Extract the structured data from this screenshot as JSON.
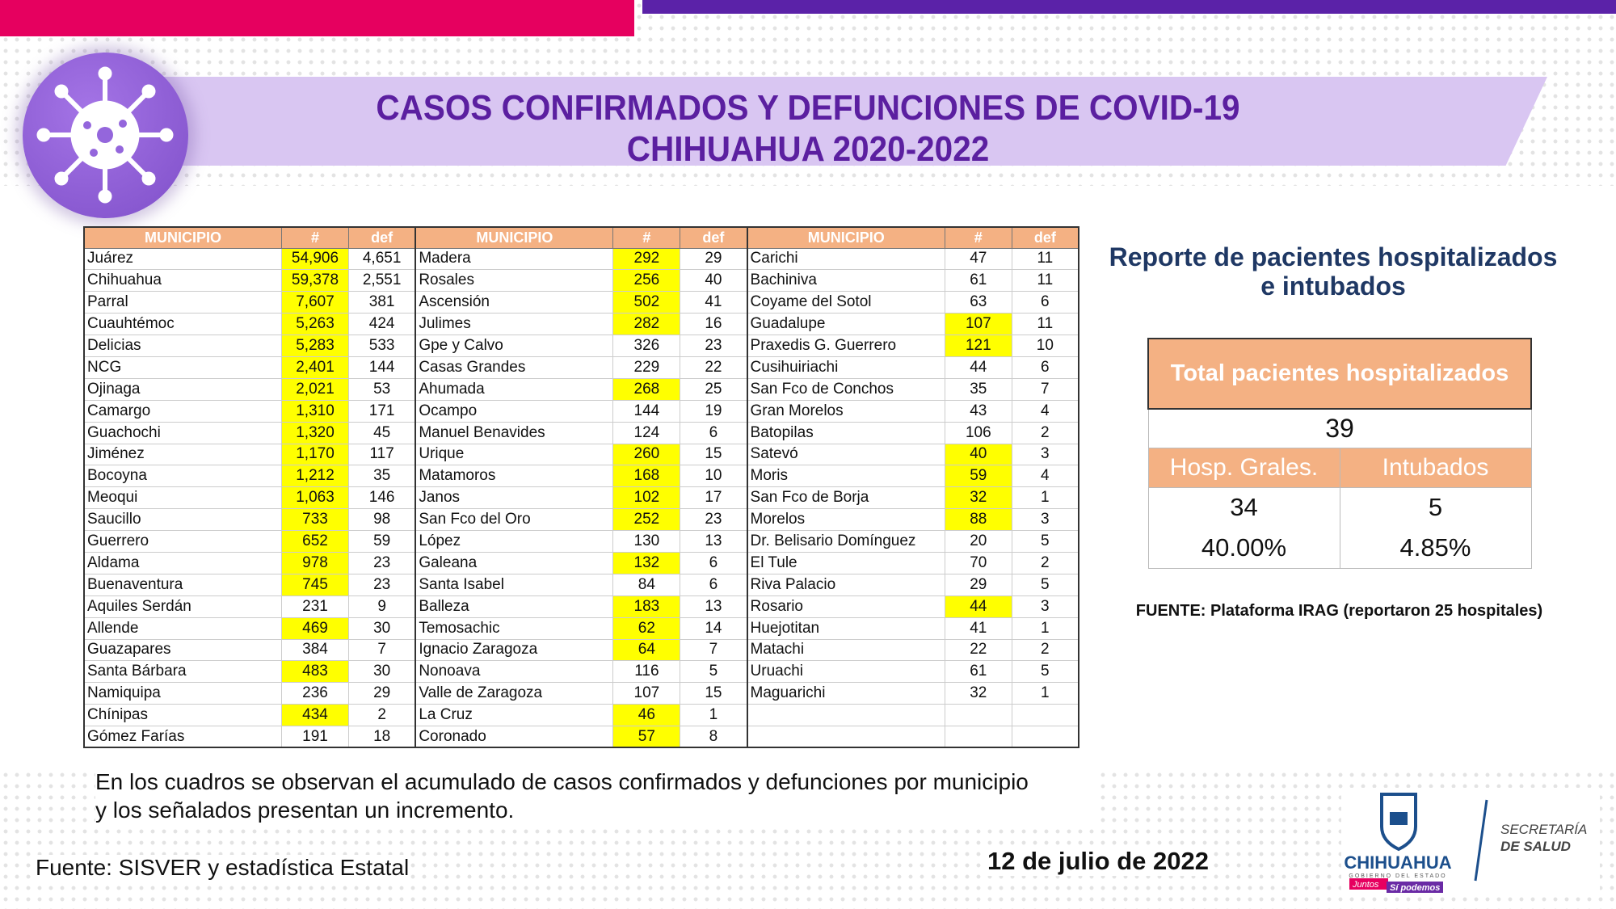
{
  "header": {
    "title_line1": "CASOS CONFIRMADOS Y DEFUNCIONES DE COVID-19",
    "title_line2": "CHIHUAHUA 2020-2022"
  },
  "table": {
    "columns": [
      "MUNICIPIO",
      "#",
      "def"
    ],
    "highlight_color": "#ffff00",
    "groups": [
      [
        [
          "Juárez",
          "54,906",
          "4,651",
          true
        ],
        [
          "Chihuahua",
          "59,378",
          "2,551",
          true
        ],
        [
          "Parral",
          "7,607",
          "381",
          true
        ],
        [
          "Cuauhtémoc",
          "5,263",
          "424",
          true
        ],
        [
          "Delicias",
          "5,283",
          "533",
          true
        ],
        [
          "NCG",
          "2,401",
          "144",
          true
        ],
        [
          "Ojinaga",
          "2,021",
          "53",
          true
        ],
        [
          "Camargo",
          "1,310",
          "171",
          true
        ],
        [
          "Guachochi",
          "1,320",
          "45",
          true
        ],
        [
          "Jiménez",
          "1,170",
          "117",
          true
        ],
        [
          "Bocoyna",
          "1,212",
          "35",
          true
        ],
        [
          "Meoqui",
          "1,063",
          "146",
          true
        ],
        [
          "Saucillo",
          "733",
          "98",
          true
        ],
        [
          "Guerrero",
          "652",
          "59",
          true
        ],
        [
          "Aldama",
          "978",
          "23",
          true
        ],
        [
          "Buenaventura",
          "745",
          "23",
          true
        ],
        [
          "Aquiles Serdán",
          "231",
          "9",
          false
        ],
        [
          "Allende",
          "469",
          "30",
          true
        ],
        [
          "Guazapares",
          "384",
          "7",
          false
        ],
        [
          "Santa Bárbara",
          "483",
          "30",
          true
        ],
        [
          "Namiquipa",
          "236",
          "29",
          false
        ],
        [
          "Chínipas",
          "434",
          "2",
          true
        ],
        [
          "Gómez Farías",
          "191",
          "18",
          false
        ]
      ],
      [
        [
          "Madera",
          "292",
          "29",
          true
        ],
        [
          "Rosales",
          "256",
          "40",
          true
        ],
        [
          "Ascensión",
          "502",
          "41",
          true
        ],
        [
          "Julimes",
          "282",
          "16",
          true
        ],
        [
          "Gpe y Calvo",
          "326",
          "23",
          false
        ],
        [
          "Casas Grandes",
          "229",
          "22",
          false
        ],
        [
          "Ahumada",
          "268",
          "25",
          true
        ],
        [
          "Ocampo",
          "144",
          "19",
          false
        ],
        [
          "Manuel Benavides",
          "124",
          "6",
          false
        ],
        [
          "Urique",
          "260",
          "15",
          true
        ],
        [
          "Matamoros",
          "168",
          "10",
          true
        ],
        [
          "Janos",
          "102",
          "17",
          true
        ],
        [
          "San Fco del Oro",
          "252",
          "23",
          true
        ],
        [
          "López",
          "130",
          "13",
          false
        ],
        [
          "Galeana",
          "132",
          "6",
          true
        ],
        [
          "Santa Isabel",
          "84",
          "6",
          false
        ],
        [
          "Balleza",
          "183",
          "13",
          true
        ],
        [
          "Temosachic",
          "62",
          "14",
          true
        ],
        [
          "Ignacio Zaragoza",
          "64",
          "7",
          true
        ],
        [
          "Nonoava",
          "116",
          "5",
          false
        ],
        [
          "Valle de Zaragoza",
          "107",
          "15",
          false
        ],
        [
          "La Cruz",
          "46",
          "1",
          true
        ],
        [
          "Coronado",
          "57",
          "8",
          true
        ]
      ],
      [
        [
          "Carichi",
          "47",
          "11",
          false
        ],
        [
          "Bachiniva",
          "61",
          "11",
          false
        ],
        [
          "Coyame del Sotol",
          "63",
          "6",
          false
        ],
        [
          "Guadalupe",
          "107",
          "11",
          true
        ],
        [
          "Praxedis G. Guerrero",
          "121",
          "10",
          true
        ],
        [
          "Cusihuiriachi",
          "44",
          "6",
          false
        ],
        [
          "San Fco de Conchos",
          "35",
          "7",
          false
        ],
        [
          "Gran Morelos",
          "43",
          "4",
          false
        ],
        [
          "Batopilas",
          "106",
          "2",
          false
        ],
        [
          "Satevó",
          "40",
          "3",
          true
        ],
        [
          "Moris",
          "59",
          "4",
          true
        ],
        [
          "San Fco de Borja",
          "32",
          "1",
          true
        ],
        [
          "Morelos",
          "88",
          "3",
          true
        ],
        [
          "Dr. Belisario Domínguez",
          "20",
          "5",
          false
        ],
        [
          "El Tule",
          "70",
          "2",
          false
        ],
        [
          "Riva Palacio",
          "29",
          "5",
          false
        ],
        [
          "Rosario",
          "44",
          "3",
          true
        ],
        [
          "Huejotitan",
          "41",
          "1",
          false
        ],
        [
          "Matachi",
          "22",
          "2",
          false
        ],
        [
          "Uruachi",
          "61",
          "5",
          false
        ],
        [
          "Maguarichi",
          "32",
          "1",
          false
        ],
        [
          "",
          "",
          "",
          false
        ],
        [
          "",
          "",
          "",
          false
        ]
      ]
    ]
  },
  "report": {
    "title_line1": "Reporte de pacientes hospitalizados",
    "title_line2": "e intubados",
    "total_label": "Total pacientes hospitalizados",
    "total": "39",
    "col1_label": "Hosp. Grales.",
    "col2_label": "Intubados",
    "col1_value": "34",
    "col2_value": "5",
    "col1_pct": "40.00%",
    "col2_pct": "4.85%",
    "source": "FUENTE: Plataforma IRAG (reportaron 25 hospitales)"
  },
  "footer": {
    "note_line1": "En los cuadros se observan el acumulado de casos confirmados y defunciones por municipio",
    "note_line2": "y los señalados presentan un incremento.",
    "source": "Fuente: SISVER y estadística Estatal",
    "date": "12 de julio de 2022"
  },
  "logo": {
    "state": "CHIHUAHUA",
    "state_sub": "GOBIERNO DEL ESTADO",
    "slogan1": "Juntos",
    "slogan2": "Sí podemos",
    "dept1": "SECRETARÍA",
    "dept2": "DE SALUD"
  },
  "colors": {
    "pink": "#e6005f",
    "purple": "#5b22a8",
    "title": "#5b1fa0",
    "orange": "#f4b183",
    "navy": "#1f3864"
  }
}
